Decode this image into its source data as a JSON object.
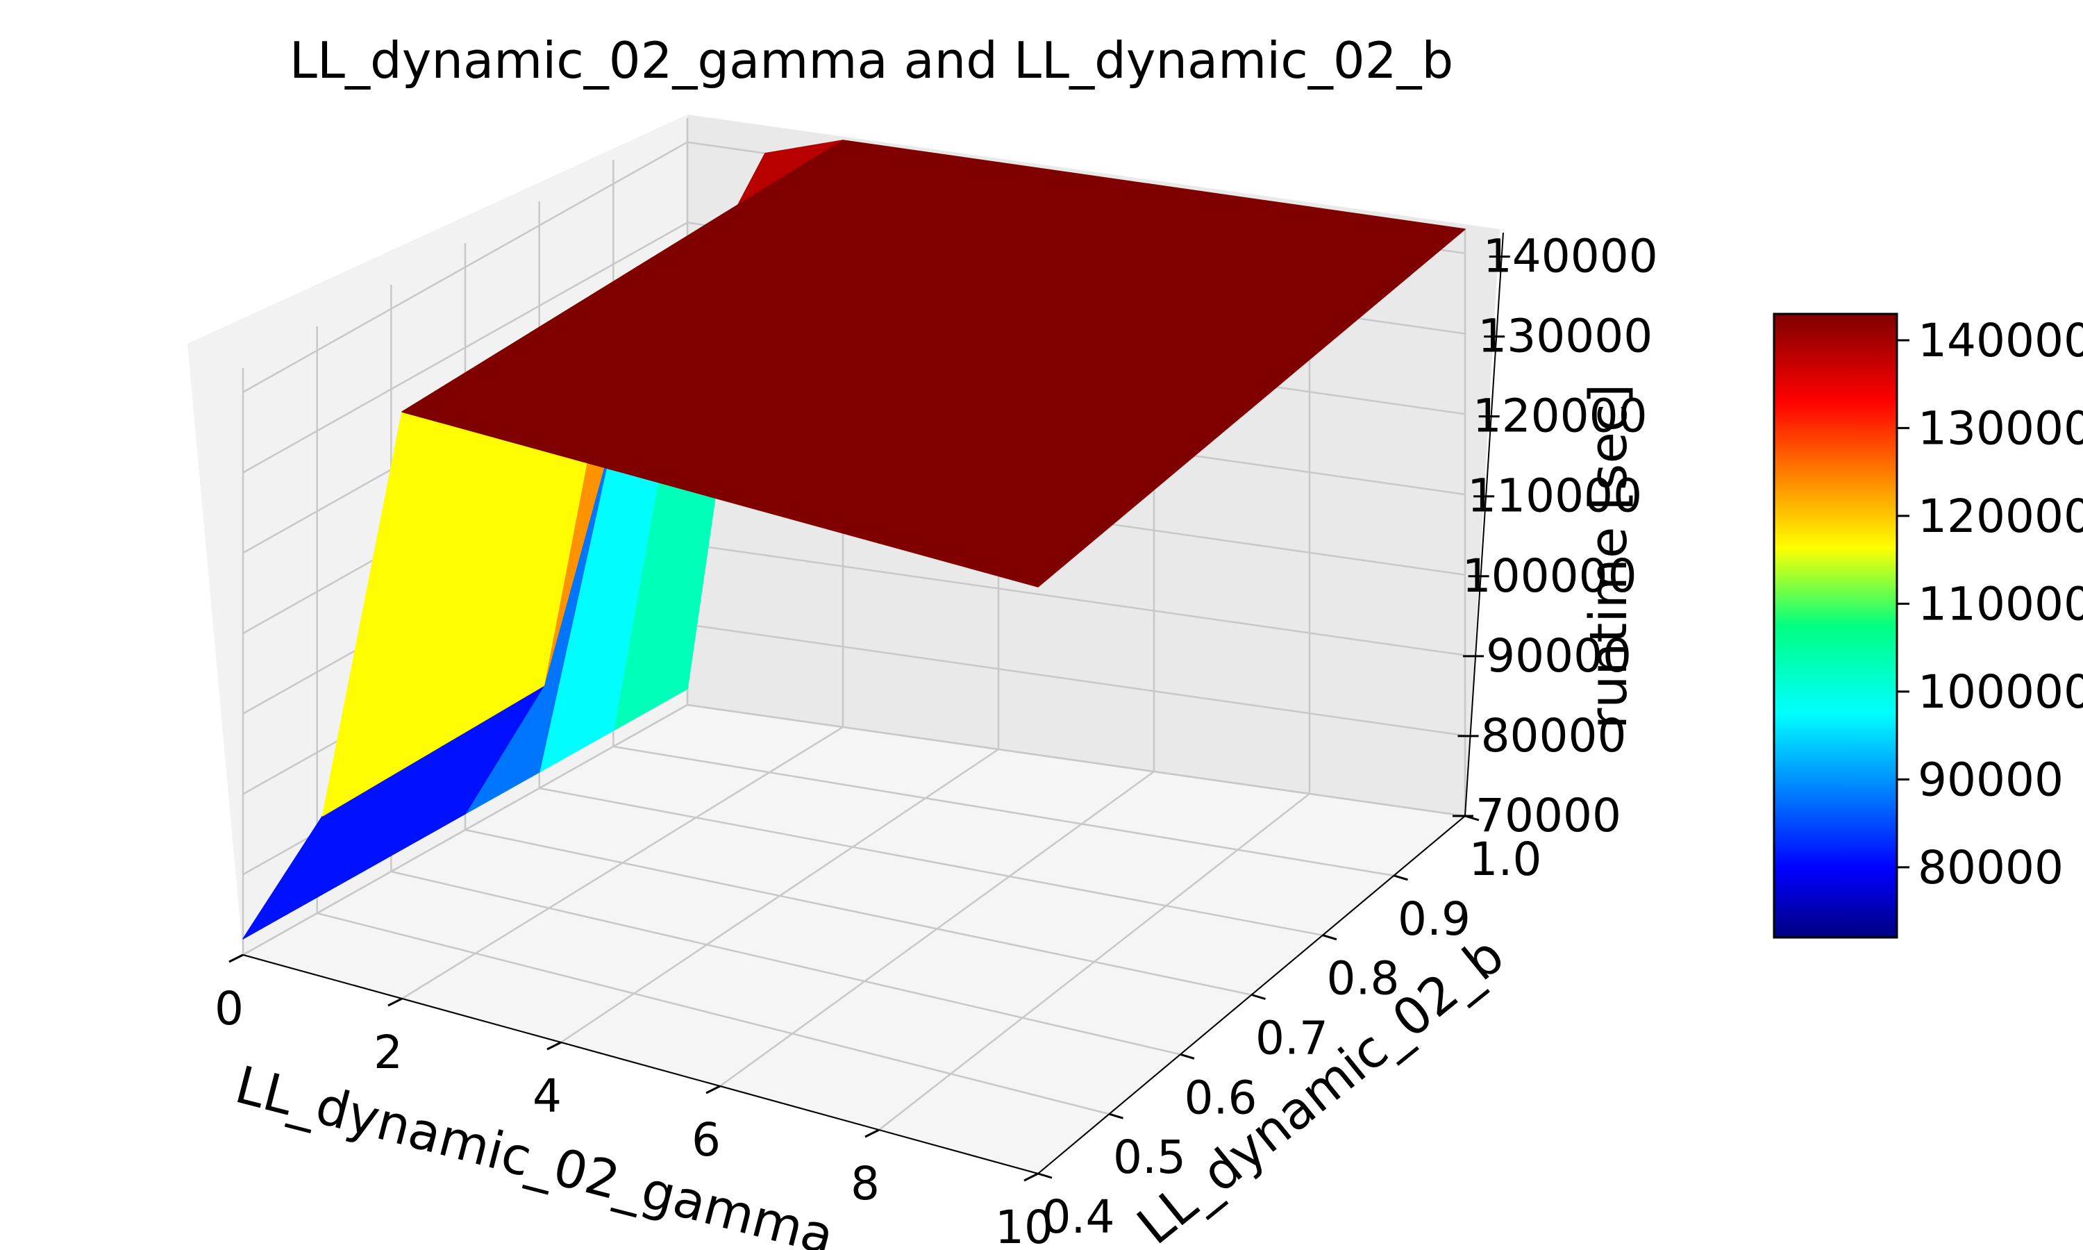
{
  "chart_data": {
    "type": "surface3d",
    "title": "LL_dynamic_02_gamma and LL_dynamic_02_b",
    "xlabel": "LL_dynamic_02_gamma",
    "ylabel": "LL_dynamic_02_b",
    "zlabel": "runtime [sec]",
    "colormap": "jet",
    "x_ticks": [
      "0",
      "2",
      "4",
      "6",
      "8",
      "10"
    ],
    "y_ticks": [
      "0.4",
      "0.5",
      "0.6",
      "0.7",
      "0.8",
      "0.9",
      "1.0"
    ],
    "z_ticks": [
      "70000",
      "80000",
      "90000",
      "100000",
      "110000",
      "120000",
      "130000",
      "140000"
    ],
    "colorbar_ticks": [
      "80000",
      "90000",
      "100000",
      "110000",
      "120000",
      "130000",
      "140000"
    ],
    "xlim": [
      0,
      10
    ],
    "ylim": [
      0.4,
      1.0
    ],
    "zlim": [
      70000,
      143000
    ],
    "colorbar_range": [
      72000,
      143000
    ],
    "x": [
      0,
      1,
      2,
      4,
      6,
      8,
      10
    ],
    "y": [
      0.4,
      0.5,
      0.6,
      0.7,
      0.8,
      0.9,
      1.0
    ],
    "z": [
      [
        72000,
        90000,
        143000,
        143000,
        143000,
        143000,
        143000
      ],
      [
        72000,
        90000,
        143000,
        143000,
        143000,
        143000,
        143000
      ],
      [
        72000,
        90000,
        143000,
        143000,
        143000,
        143000,
        143000
      ],
      [
        72000,
        90000,
        143000,
        143000,
        143000,
        143000,
        143000
      ],
      [
        72000,
        118000,
        143000,
        143000,
        143000,
        143000,
        143000
      ],
      [
        72000,
        128000,
        143000,
        143000,
        143000,
        143000,
        143000
      ],
      [
        72000,
        140000,
        143000,
        143000,
        143000,
        143000,
        143000
      ]
    ],
    "grid": true,
    "colorbar": true
  }
}
